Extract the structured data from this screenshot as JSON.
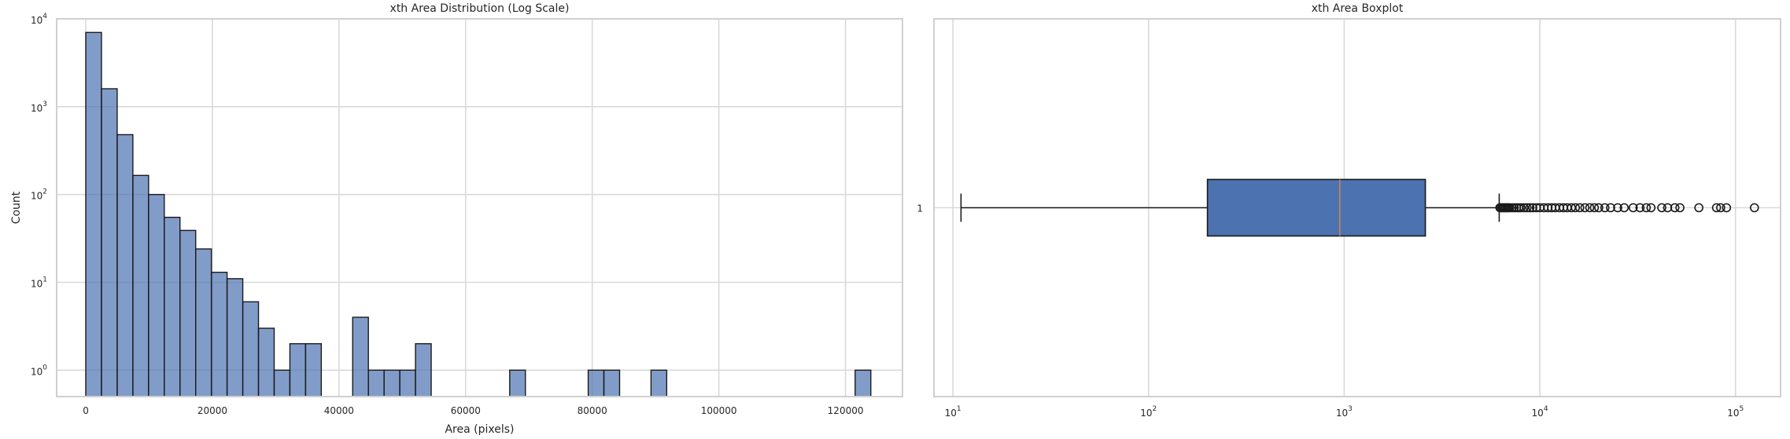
{
  "chart_data": [
    {
      "type": "bar",
      "title": "xth Area Distribution (Log Scale)",
      "xlabel": "Area (pixels)",
      "ylabel": "Count",
      "yscale": "log",
      "xlim": [
        -4600,
        129000
      ],
      "ylim": [
        0.5,
        10000
      ],
      "x_ticks": [
        0,
        20000,
        40000,
        60000,
        80000,
        100000,
        120000
      ],
      "x_tick_labels": [
        "0",
        "20000",
        "40000",
        "60000",
        "80000",
        "100000",
        "120000"
      ],
      "y_ticks": [
        1,
        10,
        100,
        1000,
        10000
      ],
      "y_tick_labels": [
        {
          "base": "10",
          "exp": "0"
        },
        {
          "base": "10",
          "exp": "1"
        },
        {
          "base": "10",
          "exp": "2"
        },
        {
          "base": "10",
          "exp": "3"
        },
        {
          "base": "10",
          "exp": "4"
        }
      ],
      "grid": true,
      "bar_color": "#4c72b0",
      "bin_width": 2480,
      "bin_starts": [
        0,
        2480,
        4960,
        7440,
        9920,
        12400,
        14880,
        17360,
        19840,
        22320,
        24800,
        27280,
        29760,
        32240,
        34720,
        42160,
        44640,
        47120,
        49600,
        52080,
        66960,
        79360,
        81840,
        89280,
        121520
      ],
      "values": [
        7000,
        1600,
        480,
        165,
        100,
        55,
        39,
        24,
        13,
        11,
        6,
        3,
        1,
        2,
        2,
        4,
        1,
        1,
        1,
        2,
        1,
        1,
        1,
        1,
        1
      ]
    },
    {
      "type": "boxplot",
      "title": "xth Area Boxplot",
      "xscale": "log",
      "xlim": [
        8,
        170000
      ],
      "x_ticks": [
        10,
        100,
        1000,
        10000,
        100000
      ],
      "x_tick_labels": [
        {
          "base": "10",
          "exp": "1"
        },
        {
          "base": "10",
          "exp": "2"
        },
        {
          "base": "10",
          "exp": "3"
        },
        {
          "base": "10",
          "exp": "4"
        },
        {
          "base": "10",
          "exp": "5"
        }
      ],
      "y_tick_labels": [
        "1"
      ],
      "grid": true,
      "box_color": "#4c72b0",
      "median_color": "#dd8452",
      "whisker_low": 11,
      "q1": 200,
      "median": 950,
      "q3": 2600,
      "whisker_high": 6200,
      "outliers": [
        6250,
        6300,
        6400,
        6500,
        6600,
        6700,
        6800,
        6900,
        7000,
        7200,
        7400,
        7600,
        7800,
        8000,
        8300,
        8600,
        8900,
        9200,
        9600,
        10000,
        10500,
        11000,
        11500,
        12000,
        12600,
        13200,
        13800,
        14500,
        15200,
        16000,
        17000,
        18000,
        19000,
        20000,
        21500,
        23000,
        25000,
        27000,
        30000,
        32500,
        35000,
        37000,
        42000,
        45000,
        49000,
        52000,
        65000,
        80000,
        84000,
        90000,
        125000
      ]
    }
  ]
}
